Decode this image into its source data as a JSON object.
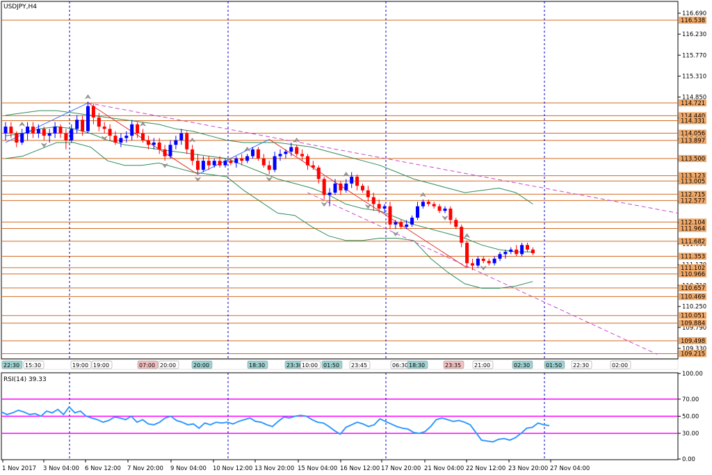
{
  "window": {
    "title": "USDJPY,H4"
  },
  "rsi_label": "RSI(14) 39.33",
  "colors": {
    "background": "#ffffff",
    "frame": "#000000",
    "bull": "#0000ff",
    "bear": "#ff0000",
    "level_line": "#d2691e",
    "price_label_bg": "#f0a868",
    "bands": "#2e8b57",
    "channel": "#cc44cc",
    "zigzag_down": "#e03030",
    "zigzag_up": "#3070ff",
    "session_vline": "#0000cc",
    "rsi_line": "#3399ff",
    "rsi_level": "#ff00ff"
  },
  "price_axis": {
    "ticks": [
      "116.690",
      "116.230",
      "115.770",
      "115.310",
      "114.850",
      "114.390",
      "113.930",
      "113.470",
      "113.010",
      "112.550",
      "112.090",
      "111.630",
      "111.170",
      "110.710",
      "110.250",
      "109.790",
      "109.330"
    ]
  },
  "level_labels": [
    "116.538",
    "114.721",
    "114.440",
    "114.331",
    "114.056",
    "113.897",
    "113.500",
    "113.123",
    "113.005",
    "112.715",
    "112.577",
    "112.104",
    "111.964",
    "111.682",
    "111.353",
    "111.102",
    "110.966",
    "110.657",
    "110.469",
    "110.051",
    "109.884",
    "109.498",
    "109.215"
  ],
  "time_axis": {
    "labels": [
      "1 Nov 2017",
      "3 Nov 04:00",
      "6 Nov 12:00",
      "7 Nov 20:00",
      "9 Nov 04:00",
      "10 Nov 12:00",
      "13 Nov 20:00",
      "15 Nov 04:00",
      "16 Nov 12:00",
      "17 Nov 20:00",
      "21 Nov 04:00",
      "22 Nov 12:00",
      "23 Nov 20:00",
      "27 Nov 04:00"
    ]
  },
  "event_tags": [
    "22:30",
    "15:30",
    "19:00",
    "19:00",
    "07:00",
    "20:00",
    "20:00",
    "18:30",
    "23:30",
    "10:00",
    "01:50",
    "23:45",
    "06:30",
    "18:30",
    "23:35",
    "21:00",
    "02:30",
    "01:50",
    "22:30",
    "02:00"
  ],
  "rsi_axis": {
    "ticks": [
      "100.00",
      "70.00",
      "50.00",
      "30.00",
      "0.00"
    ]
  },
  "chart_data": [
    {
      "type": "candlestick",
      "symbol": "USDJPY",
      "timeframe": "H4",
      "ylim": [
        109.1,
        116.95
      ],
      "horizontal_levels": [
        116.538,
        114.721,
        114.44,
        114.331,
        114.056,
        113.897,
        113.5,
        113.123,
        113.005,
        112.715,
        112.577,
        112.104,
        111.964,
        111.682,
        111.353,
        111.102,
        110.966,
        110.657,
        110.469,
        110.051,
        109.884,
        109.498,
        109.215
      ],
      "candles": [
        {
          "o": 114.05,
          "h": 114.3,
          "l": 113.9,
          "c": 114.2
        },
        {
          "o": 114.2,
          "h": 114.3,
          "l": 113.95,
          "c": 114.05
        },
        {
          "o": 114.05,
          "h": 114.1,
          "l": 113.75,
          "c": 113.85
        },
        {
          "o": 113.85,
          "h": 114.15,
          "l": 113.8,
          "c": 114.05
        },
        {
          "o": 114.05,
          "h": 114.3,
          "l": 113.9,
          "c": 114.2
        },
        {
          "o": 114.2,
          "h": 114.3,
          "l": 113.95,
          "c": 114.05
        },
        {
          "o": 114.05,
          "h": 114.25,
          "l": 113.95,
          "c": 114.15
        },
        {
          "o": 114.15,
          "h": 114.2,
          "l": 113.9,
          "c": 114.0
        },
        {
          "o": 114.0,
          "h": 114.15,
          "l": 113.85,
          "c": 114.05
        },
        {
          "o": 114.05,
          "h": 114.3,
          "l": 113.95,
          "c": 114.2
        },
        {
          "o": 114.2,
          "h": 114.25,
          "l": 113.95,
          "c": 114.05
        },
        {
          "o": 114.05,
          "h": 114.15,
          "l": 113.7,
          "c": 113.9
        },
        {
          "o": 113.9,
          "h": 114.25,
          "l": 113.85,
          "c": 114.15
        },
        {
          "o": 114.15,
          "h": 114.45,
          "l": 114.05,
          "c": 114.35
        },
        {
          "o": 114.35,
          "h": 114.45,
          "l": 114.0,
          "c": 114.1
        },
        {
          "o": 114.1,
          "h": 114.75,
          "l": 114.05,
          "c": 114.65
        },
        {
          "o": 114.65,
          "h": 114.7,
          "l": 114.25,
          "c": 114.4
        },
        {
          "o": 114.4,
          "h": 114.5,
          "l": 114.1,
          "c": 114.2
        },
        {
          "o": 114.2,
          "h": 114.3,
          "l": 114.05,
          "c": 114.15
        },
        {
          "o": 114.15,
          "h": 114.25,
          "l": 113.9,
          "c": 114.0
        },
        {
          "o": 114.0,
          "h": 114.1,
          "l": 113.8,
          "c": 113.85
        },
        {
          "o": 113.85,
          "h": 114.05,
          "l": 113.75,
          "c": 113.95
        },
        {
          "o": 113.95,
          "h": 114.1,
          "l": 113.85,
          "c": 114.0
        },
        {
          "o": 114.0,
          "h": 114.35,
          "l": 113.9,
          "c": 114.25
        },
        {
          "o": 114.25,
          "h": 114.3,
          "l": 113.95,
          "c": 114.05
        },
        {
          "o": 114.05,
          "h": 114.15,
          "l": 113.85,
          "c": 113.9
        },
        {
          "o": 113.9,
          "h": 114.0,
          "l": 113.7,
          "c": 113.8
        },
        {
          "o": 113.8,
          "h": 113.95,
          "l": 113.7,
          "c": 113.85
        },
        {
          "o": 113.85,
          "h": 113.95,
          "l": 113.6,
          "c": 113.7
        },
        {
          "o": 113.7,
          "h": 113.8,
          "l": 113.45,
          "c": 113.55
        },
        {
          "o": 113.55,
          "h": 113.9,
          "l": 113.5,
          "c": 113.8
        },
        {
          "o": 113.8,
          "h": 114.0,
          "l": 113.7,
          "c": 113.9
        },
        {
          "o": 113.9,
          "h": 114.15,
          "l": 113.8,
          "c": 114.05
        },
        {
          "o": 114.05,
          "h": 114.1,
          "l": 113.6,
          "c": 113.7
        },
        {
          "o": 113.7,
          "h": 113.8,
          "l": 113.35,
          "c": 113.45
        },
        {
          "o": 113.45,
          "h": 113.6,
          "l": 113.15,
          "c": 113.25
        },
        {
          "o": 113.25,
          "h": 113.55,
          "l": 113.2,
          "c": 113.45
        },
        {
          "o": 113.45,
          "h": 113.55,
          "l": 113.25,
          "c": 113.35
        },
        {
          "o": 113.35,
          "h": 113.5,
          "l": 113.3,
          "c": 113.45
        },
        {
          "o": 113.45,
          "h": 113.55,
          "l": 113.3,
          "c": 113.35
        },
        {
          "o": 113.35,
          "h": 113.5,
          "l": 113.3,
          "c": 113.45
        },
        {
          "o": 113.45,
          "h": 113.5,
          "l": 113.35,
          "c": 113.4
        },
        {
          "o": 113.4,
          "h": 113.55,
          "l": 113.3,
          "c": 113.5
        },
        {
          "o": 113.5,
          "h": 113.6,
          "l": 113.35,
          "c": 113.45
        },
        {
          "o": 113.45,
          "h": 113.6,
          "l": 113.4,
          "c": 113.55
        },
        {
          "o": 113.55,
          "h": 113.75,
          "l": 113.5,
          "c": 113.7
        },
        {
          "o": 113.7,
          "h": 113.75,
          "l": 113.45,
          "c": 113.5
        },
        {
          "o": 113.5,
          "h": 113.6,
          "l": 113.3,
          "c": 113.35
        },
        {
          "o": 113.35,
          "h": 113.45,
          "l": 113.15,
          "c": 113.25
        },
        {
          "o": 113.25,
          "h": 113.65,
          "l": 113.2,
          "c": 113.55
        },
        {
          "o": 113.55,
          "h": 113.7,
          "l": 113.45,
          "c": 113.6
        },
        {
          "o": 113.6,
          "h": 113.7,
          "l": 113.5,
          "c": 113.65
        },
        {
          "o": 113.65,
          "h": 113.85,
          "l": 113.55,
          "c": 113.75
        },
        {
          "o": 113.75,
          "h": 113.8,
          "l": 113.55,
          "c": 113.6
        },
        {
          "o": 113.6,
          "h": 113.7,
          "l": 113.45,
          "c": 113.55
        },
        {
          "o": 113.55,
          "h": 113.6,
          "l": 113.25,
          "c": 113.35
        },
        {
          "o": 113.35,
          "h": 113.45,
          "l": 113.25,
          "c": 113.3
        },
        {
          "o": 113.3,
          "h": 113.35,
          "l": 112.95,
          "c": 113.05
        },
        {
          "o": 113.05,
          "h": 113.1,
          "l": 112.6,
          "c": 112.7
        },
        {
          "o": 112.7,
          "h": 112.85,
          "l": 112.45,
          "c": 112.75
        },
        {
          "o": 112.75,
          "h": 113.05,
          "l": 112.7,
          "c": 112.95
        },
        {
          "o": 112.95,
          "h": 113.0,
          "l": 112.7,
          "c": 112.8
        },
        {
          "o": 112.8,
          "h": 113.05,
          "l": 112.75,
          "c": 112.95
        },
        {
          "o": 112.95,
          "h": 113.2,
          "l": 112.85,
          "c": 113.1
        },
        {
          "o": 113.1,
          "h": 113.15,
          "l": 112.8,
          "c": 112.9
        },
        {
          "o": 112.9,
          "h": 112.95,
          "l": 112.75,
          "c": 112.8
        },
        {
          "o": 112.8,
          "h": 112.9,
          "l": 112.55,
          "c": 112.65
        },
        {
          "o": 112.65,
          "h": 112.75,
          "l": 112.35,
          "c": 112.5
        },
        {
          "o": 112.5,
          "h": 112.6,
          "l": 112.3,
          "c": 112.4
        },
        {
          "o": 112.4,
          "h": 112.5,
          "l": 112.3,
          "c": 112.45
        },
        {
          "o": 112.45,
          "h": 112.55,
          "l": 111.95,
          "c": 112.05
        },
        {
          "o": 112.05,
          "h": 112.15,
          "l": 111.95,
          "c": 112.1
        },
        {
          "o": 112.1,
          "h": 112.15,
          "l": 111.95,
          "c": 112.0
        },
        {
          "o": 112.0,
          "h": 112.15,
          "l": 111.95,
          "c": 112.05
        },
        {
          "o": 112.05,
          "h": 112.25,
          "l": 112.0,
          "c": 112.2
        },
        {
          "o": 112.2,
          "h": 112.55,
          "l": 112.15,
          "c": 112.45
        },
        {
          "o": 112.45,
          "h": 112.6,
          "l": 112.4,
          "c": 112.55
        },
        {
          "o": 112.55,
          "h": 112.6,
          "l": 112.45,
          "c": 112.5
        },
        {
          "o": 112.5,
          "h": 112.55,
          "l": 112.4,
          "c": 112.45
        },
        {
          "o": 112.45,
          "h": 112.5,
          "l": 112.3,
          "c": 112.35
        },
        {
          "o": 112.35,
          "h": 112.45,
          "l": 112.3,
          "c": 112.4
        },
        {
          "o": 112.4,
          "h": 112.45,
          "l": 112.05,
          "c": 112.15
        },
        {
          "o": 112.15,
          "h": 112.2,
          "l": 111.95,
          "c": 112.0
        },
        {
          "o": 112.0,
          "h": 112.05,
          "l": 111.55,
          "c": 111.65
        },
        {
          "o": 111.65,
          "h": 111.7,
          "l": 111.1,
          "c": 111.2
        },
        {
          "o": 111.2,
          "h": 111.3,
          "l": 111.05,
          "c": 111.15
        },
        {
          "o": 111.15,
          "h": 111.35,
          "l": 111.1,
          "c": 111.3
        },
        {
          "o": 111.3,
          "h": 111.35,
          "l": 111.2,
          "c": 111.25
        },
        {
          "o": 111.25,
          "h": 111.3,
          "l": 111.15,
          "c": 111.2
        },
        {
          "o": 111.2,
          "h": 111.35,
          "l": 111.15,
          "c": 111.3
        },
        {
          "o": 111.3,
          "h": 111.45,
          "l": 111.25,
          "c": 111.4
        },
        {
          "o": 111.4,
          "h": 111.5,
          "l": 111.3,
          "c": 111.45
        },
        {
          "o": 111.45,
          "h": 111.55,
          "l": 111.4,
          "c": 111.5
        },
        {
          "o": 111.5,
          "h": 111.6,
          "l": 111.35,
          "c": 111.4
        },
        {
          "o": 111.4,
          "h": 111.65,
          "l": 111.35,
          "c": 111.6
        },
        {
          "o": 111.6,
          "h": 111.65,
          "l": 111.45,
          "c": 111.5
        },
        {
          "o": 111.5,
          "h": 111.55,
          "l": 111.38,
          "c": 111.42
        }
      ],
      "bollinger_bands": {
        "upper": [
          114.45,
          114.5,
          114.55,
          114.55,
          114.5,
          114.45,
          114.4,
          114.35,
          114.3,
          114.25,
          114.15,
          114.1,
          114.0,
          113.9,
          113.85,
          113.85,
          113.85,
          113.8,
          113.75,
          113.65,
          113.55,
          113.45,
          113.35,
          113.2,
          113.05,
          112.95,
          112.85,
          112.75,
          112.8,
          112.85,
          112.75,
          112.5
        ],
        "middle": [
          114.0,
          114.05,
          114.15,
          114.2,
          114.15,
          114.05,
          113.9,
          113.8,
          113.75,
          113.7,
          113.65,
          113.6,
          113.55,
          113.5,
          113.35,
          113.2,
          113.05,
          112.95,
          112.85,
          112.7,
          112.5,
          112.4,
          112.35,
          112.2,
          112.05,
          111.95,
          111.85,
          111.75,
          111.6,
          111.5,
          111.45,
          111.45
        ],
        "lower": [
          113.5,
          113.55,
          113.7,
          113.85,
          113.85,
          113.75,
          113.45,
          113.35,
          113.35,
          113.4,
          113.3,
          113.2,
          113.15,
          113.1,
          112.8,
          112.55,
          112.3,
          112.25,
          112.0,
          111.8,
          111.7,
          111.7,
          111.75,
          111.75,
          111.7,
          111.3,
          111.0,
          110.75,
          110.65,
          110.65,
          110.7,
          110.8
        ]
      },
      "channel": {
        "upper": [
          114.72,
          112.3
        ],
        "lower": [
          112.75,
          109.2
        ]
      },
      "zigzag": [
        {
          "i": 0,
          "p": 113.85
        },
        {
          "i": 15,
          "p": 114.72
        },
        {
          "i": 35,
          "p": 113.15
        },
        {
          "i": 48,
          "p": 113.92
        },
        {
          "i": 84,
          "p": 111.1
        }
      ],
      "fractals_up": [
        3,
        15,
        25,
        34,
        44,
        53,
        62,
        76,
        84
      ],
      "fractals_down": [
        7,
        18,
        29,
        35,
        48,
        58,
        66,
        71,
        80,
        87
      ]
    },
    {
      "type": "line",
      "name": "RSI(14)",
      "ylim": [
        0,
        100
      ],
      "levels": [
        70,
        50,
        30
      ],
      "values": [
        55,
        52,
        54,
        57,
        55,
        52,
        53,
        50,
        56,
        54,
        58,
        52,
        61,
        54,
        56,
        50,
        48,
        46,
        43,
        45,
        49,
        48,
        46,
        50,
        43,
        46,
        41,
        40,
        43,
        48,
        50,
        45,
        43,
        40,
        41,
        36,
        42,
        40,
        43,
        42,
        43,
        41,
        44,
        46,
        48,
        44,
        43,
        40,
        38,
        44,
        49,
        48,
        50,
        51,
        50,
        46,
        43,
        42,
        38,
        33,
        29,
        37,
        40,
        43,
        41,
        38,
        40,
        47,
        44,
        41,
        38,
        36,
        35,
        31,
        30,
        32,
        38,
        46,
        48,
        46,
        44,
        45,
        43,
        40,
        31,
        22,
        21,
        20,
        23,
        24,
        22,
        25,
        30,
        36,
        37,
        42,
        40,
        39
      ]
    }
  ]
}
